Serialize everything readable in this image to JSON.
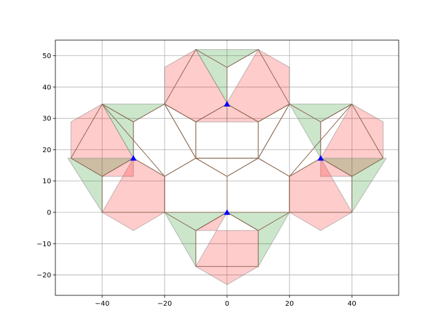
{
  "chart_data": {
    "type": "polygon-scatter",
    "title": "",
    "xlabel": "",
    "ylabel": "",
    "xlim": [
      -55,
      55
    ],
    "ylim": [
      -26.5,
      55
    ],
    "grid": true,
    "xticks": [
      -40,
      -20,
      0,
      20,
      40
    ],
    "yticks": [
      -20,
      -10,
      0,
      10,
      20,
      30,
      40,
      50
    ],
    "xtick_labels": [
      "−40",
      "−20",
      "0",
      "20",
      "40"
    ],
    "ytick_labels": [
      "−20",
      "−10",
      "0",
      "10",
      "20",
      "30",
      "40",
      "50"
    ],
    "colors": {
      "red_fill": "#ff0000",
      "green_fill": "#008000",
      "patch_edge": "#808080",
      "tile_edge": "#8b6a52",
      "marker": "#0000ff",
      "grid": "#b0b0b0"
    },
    "red_polygons": [
      [
        [
          0,
          35
        ],
        [
          -10,
          52
        ],
        [
          -20,
          46.3
        ],
        [
          -20,
          34.6
        ],
        [
          -10,
          28.9
        ],
        [
          0,
          28.9
        ]
      ],
      [
        [
          0,
          35
        ],
        [
          10,
          52
        ],
        [
          20,
          46.3
        ],
        [
          20,
          34.6
        ],
        [
          10,
          28.9
        ],
        [
          0,
          28.9
        ]
      ],
      [
        [
          -30,
          17.3
        ],
        [
          -40,
          34.6
        ],
        [
          -50,
          28.9
        ],
        [
          -50,
          17.3
        ],
        [
          -40,
          11.5
        ],
        [
          -30,
          11.5
        ]
      ],
      [
        [
          30,
          17.3
        ],
        [
          40,
          34.6
        ],
        [
          50,
          28.9
        ],
        [
          50,
          17.3
        ],
        [
          40,
          11.5
        ],
        [
          30,
          11.5
        ]
      ],
      [
        [
          -30,
          17.3
        ],
        [
          -40,
          0
        ],
        [
          -30,
          -5.8
        ],
        [
          -20,
          0
        ],
        [
          -20,
          11.5
        ]
      ],
      [
        [
          30,
          17.3
        ],
        [
          40,
          0
        ],
        [
          30,
          -5.8
        ],
        [
          20,
          0
        ],
        [
          20,
          11.5
        ]
      ],
      [
        [
          0,
          0
        ],
        [
          -10,
          -17.3
        ],
        [
          0,
          -23.1
        ],
        [
          10,
          -17.3
        ],
        [
          10,
          -5.8
        ],
        [
          -10,
          -5.8
        ]
      ]
    ],
    "green_polygons": [
      [
        [
          0,
          35
        ],
        [
          -10,
          52
        ],
        [
          10,
          52
        ],
        [
          0,
          46.3
        ]
      ],
      [
        [
          -30,
          17.3
        ],
        [
          -40,
          34.6
        ],
        [
          -20,
          34.6
        ],
        [
          -30,
          28.9
        ]
      ],
      [
        [
          30,
          17.3
        ],
        [
          20,
          34.6
        ],
        [
          40,
          34.6
        ],
        [
          30,
          28.9
        ]
      ],
      [
        [
          -30,
          17.3
        ],
        [
          -51,
          17.3
        ],
        [
          -40,
          0
        ],
        [
          -40,
          11.5
        ]
      ],
      [
        [
          30,
          17.3
        ],
        [
          51,
          17.3
        ],
        [
          40,
          0
        ],
        [
          40,
          11.5
        ]
      ],
      [
        [
          0,
          0
        ],
        [
          -20,
          0
        ],
        [
          -10,
          -17.3
        ],
        [
          -10,
          -5.8
        ]
      ],
      [
        [
          0,
          0
        ],
        [
          20,
          0
        ],
        [
          10,
          -17.3
        ],
        [
          10,
          -5.8
        ]
      ]
    ],
    "tiles": [
      [
        [
          -10,
          17.3
        ],
        [
          -10,
          28.9
        ],
        [
          0,
          34.6
        ],
        [
          10,
          28.9
        ],
        [
          10,
          17.3
        ]
      ],
      [
        [
          -20,
          34.6
        ],
        [
          -10,
          52
        ],
        [
          0,
          46.3
        ],
        [
          0,
          34.6
        ],
        [
          -10,
          28.9
        ]
      ],
      [
        [
          0,
          34.6
        ],
        [
          0,
          46.3
        ],
        [
          10,
          52
        ],
        [
          20,
          34.6
        ],
        [
          10,
          28.9
        ]
      ],
      [
        [
          -20,
          34.6
        ],
        [
          -10,
          28.9
        ],
        [
          -10,
          17.3
        ]
      ],
      [
        [
          20,
          34.6
        ],
        [
          10,
          28.9
        ],
        [
          10,
          17.3
        ]
      ],
      [
        [
          -40,
          34.6
        ],
        [
          -30,
          28.9
        ],
        [
          -20,
          34.6
        ],
        [
          -10,
          17.3
        ],
        [
          -20,
          11.5
        ]
      ],
      [
        [
          -40,
          34.6
        ],
        [
          -50,
          17.3
        ],
        [
          -40,
          11.5
        ],
        [
          -30,
          17.3
        ],
        [
          -30,
          28.9
        ]
      ],
      [
        [
          -40,
          11.5
        ],
        [
          -40,
          0
        ],
        [
          -20,
          0
        ],
        [
          -20,
          11.5
        ],
        [
          -30,
          17.3
        ]
      ],
      [
        [
          40,
          34.6
        ],
        [
          30,
          28.9
        ],
        [
          20,
          34.6
        ],
        [
          10,
          17.3
        ],
        [
          20,
          11.5
        ]
      ],
      [
        [
          40,
          34.6
        ],
        [
          50,
          17.3
        ],
        [
          40,
          11.5
        ],
        [
          30,
          17.3
        ],
        [
          30,
          28.9
        ]
      ],
      [
        [
          40,
          11.5
        ],
        [
          40,
          0
        ],
        [
          20,
          0
        ],
        [
          20,
          11.5
        ],
        [
          30,
          17.3
        ]
      ],
      [
        [
          -10,
          17.3
        ],
        [
          10,
          17.3
        ],
        [
          0,
          11.5
        ]
      ],
      [
        [
          -10,
          17.3
        ],
        [
          0,
          11.5
        ],
        [
          0,
          0
        ],
        [
          -20,
          0
        ],
        [
          -20,
          11.5
        ]
      ],
      [
        [
          10,
          17.3
        ],
        [
          0,
          11.5
        ],
        [
          0,
          0
        ],
        [
          20,
          0
        ],
        [
          20,
          11.5
        ]
      ],
      [
        [
          -20,
          0
        ],
        [
          -10,
          -5.8
        ],
        [
          0,
          0
        ]
      ],
      [
        [
          20,
          0
        ],
        [
          10,
          -5.8
        ],
        [
          0,
          0
        ]
      ],
      [
        [
          -10,
          -5.8
        ],
        [
          -10,
          -17.3
        ],
        [
          10,
          -17.3
        ],
        [
          10,
          -5.8
        ],
        [
          0,
          0
        ]
      ]
    ],
    "markers": [
      {
        "x": 0,
        "y": 34.6
      },
      {
        "x": -30,
        "y": 17.3
      },
      {
        "x": 30,
        "y": 17.3
      },
      {
        "x": 0,
        "y": 0
      }
    ]
  }
}
